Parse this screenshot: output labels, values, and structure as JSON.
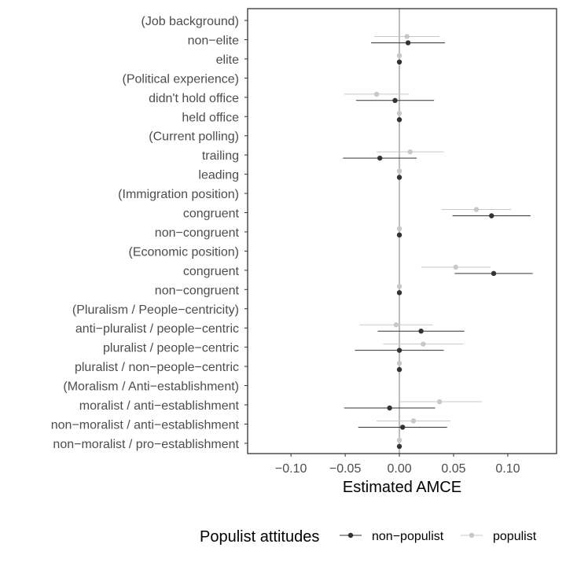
{
  "chart_data": {
    "type": "scatter",
    "xlabel": "Estimated AMCE",
    "xlim": [
      -0.14,
      0.145
    ],
    "x_ticks": [
      {
        "value": -0.1,
        "label": "−0.10"
      },
      {
        "value": -0.05,
        "label": "−0.05"
      },
      {
        "value": 0.0,
        "label": "0.00"
      },
      {
        "value": 0.05,
        "label": "0.05"
      },
      {
        "value": 0.1,
        "label": "0.10"
      }
    ],
    "grid": false,
    "reference_line": 0,
    "legend": {
      "title": "Populist attitudes",
      "position": "bottom"
    },
    "categories": [
      "(Job background)",
      "non−elite",
      "elite",
      "(Political experience)",
      "didn't hold office",
      "held office",
      "(Current polling)",
      "trailing",
      "leading",
      "(Immigration position)",
      "congruent ",
      "non−congruent ",
      "(Economic position)",
      "congruent",
      "non−congruent",
      "(Pluralism / People−centricity)",
      "anti−pluralist / people−centric",
      "pluralist / people−centric",
      "pluralist / non−people−centric",
      "(Moralism / Anti−establishment)",
      "moralist / anti−establishment",
      "non−moralist / anti−establishment",
      "non−moralist / pro−establishment"
    ],
    "series": [
      {
        "name": "non−populist",
        "color": "#333333",
        "points": [
          {
            "cat": 1,
            "est": 0.008,
            "lo": -0.026,
            "hi": 0.042
          },
          {
            "cat": 2,
            "est": 0.0,
            "lo": 0.0,
            "hi": 0.0
          },
          {
            "cat": 4,
            "est": -0.004,
            "lo": -0.04,
            "hi": 0.032
          },
          {
            "cat": 5,
            "est": 0.0,
            "lo": 0.0,
            "hi": 0.0
          },
          {
            "cat": 7,
            "est": -0.018,
            "lo": -0.052,
            "hi": 0.016
          },
          {
            "cat": 8,
            "est": 0.0,
            "lo": 0.0,
            "hi": 0.0
          },
          {
            "cat": 10,
            "est": 0.085,
            "lo": 0.049,
            "hi": 0.121
          },
          {
            "cat": 11,
            "est": 0.0,
            "lo": 0.0,
            "hi": 0.0
          },
          {
            "cat": 13,
            "est": 0.087,
            "lo": 0.051,
            "hi": 0.123
          },
          {
            "cat": 14,
            "est": 0.0,
            "lo": 0.0,
            "hi": 0.0
          },
          {
            "cat": 16,
            "est": 0.02,
            "lo": -0.02,
            "hi": 0.06
          },
          {
            "cat": 17,
            "est": 0.0,
            "lo": -0.041,
            "hi": 0.041
          },
          {
            "cat": 18,
            "est": 0.0,
            "lo": 0.0,
            "hi": 0.0
          },
          {
            "cat": 20,
            "est": -0.009,
            "lo": -0.051,
            "hi": 0.033
          },
          {
            "cat": 21,
            "est": 0.003,
            "lo": -0.038,
            "hi": 0.044
          },
          {
            "cat": 22,
            "est": 0.0,
            "lo": 0.0,
            "hi": 0.0
          }
        ]
      },
      {
        "name": "populist",
        "color": "#c8c8c8",
        "points": [
          {
            "cat": 1,
            "est": 0.007,
            "lo": -0.023,
            "hi": 0.037
          },
          {
            "cat": 2,
            "est": 0.0,
            "lo": 0.0,
            "hi": 0.0
          },
          {
            "cat": 4,
            "est": -0.021,
            "lo": -0.051,
            "hi": 0.009
          },
          {
            "cat": 5,
            "est": 0.0,
            "lo": 0.0,
            "hi": 0.0
          },
          {
            "cat": 7,
            "est": 0.01,
            "lo": -0.021,
            "hi": 0.041
          },
          {
            "cat": 8,
            "est": 0.0,
            "lo": 0.0,
            "hi": 0.0
          },
          {
            "cat": 10,
            "est": 0.071,
            "lo": 0.039,
            "hi": 0.103
          },
          {
            "cat": 11,
            "est": 0.0,
            "lo": 0.0,
            "hi": 0.0
          },
          {
            "cat": 13,
            "est": 0.052,
            "lo": 0.02,
            "hi": 0.084
          },
          {
            "cat": 14,
            "est": 0.0,
            "lo": 0.0,
            "hi": 0.0
          },
          {
            "cat": 16,
            "est": -0.003,
            "lo": -0.037,
            "hi": 0.031
          },
          {
            "cat": 17,
            "est": 0.022,
            "lo": -0.015,
            "hi": 0.059
          },
          {
            "cat": 18,
            "est": 0.0,
            "lo": 0.0,
            "hi": 0.0
          },
          {
            "cat": 20,
            "est": 0.037,
            "lo": 0.0,
            "hi": 0.076
          },
          {
            "cat": 21,
            "est": 0.013,
            "lo": -0.021,
            "hi": 0.047
          },
          {
            "cat": 22,
            "est": 0.0,
            "lo": 0.0,
            "hi": 0.0
          }
        ]
      }
    ]
  }
}
